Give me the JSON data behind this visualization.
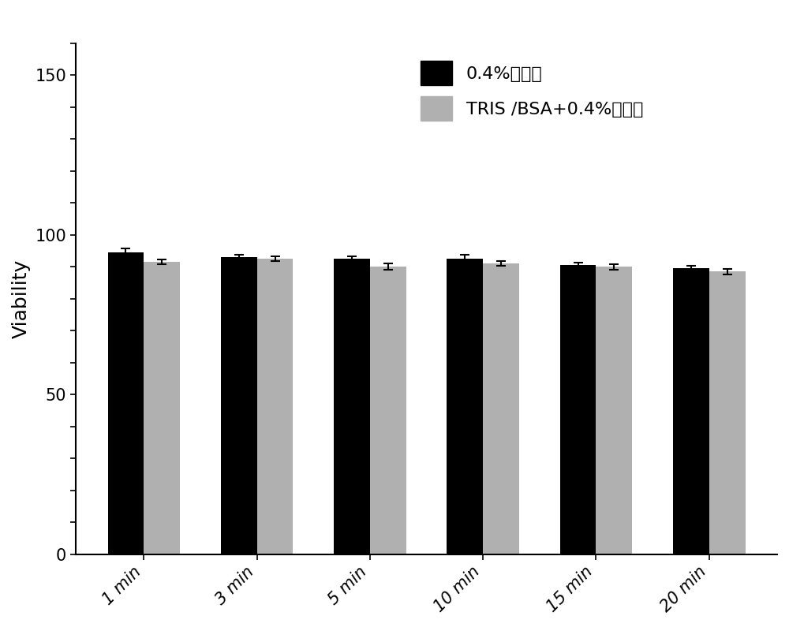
{
  "categories": [
    "1 min",
    "3 min",
    "5 min",
    "10 min",
    "15 min",
    "20 min"
  ],
  "series1_values": [
    94.5,
    93.0,
    92.5,
    92.5,
    90.5,
    89.5
  ],
  "series2_values": [
    91.5,
    92.5,
    90.0,
    91.0,
    90.0,
    88.5
  ],
  "series1_errors": [
    1.2,
    0.8,
    0.8,
    1.2,
    0.8,
    0.8
  ],
  "series2_errors": [
    0.8,
    0.8,
    1.0,
    0.8,
    0.8,
    0.8
  ],
  "series1_color": "#000000",
  "series2_color": "#b0b0b0",
  "series1_label": "0.4%台盼蓝",
  "series2_label": "TRIS /BSA+0.4%台盼蓝",
  "ylabel": "Viability",
  "ylim": [
    0,
    160
  ],
  "yticks": [
    0,
    50,
    100,
    150
  ],
  "bar_width": 0.32,
  "figure_width": 10.0,
  "figure_height": 7.95,
  "background_color": "#ffffff",
  "legend_fontsize": 16,
  "axis_label_fontsize": 18,
  "tick_fontsize": 15
}
